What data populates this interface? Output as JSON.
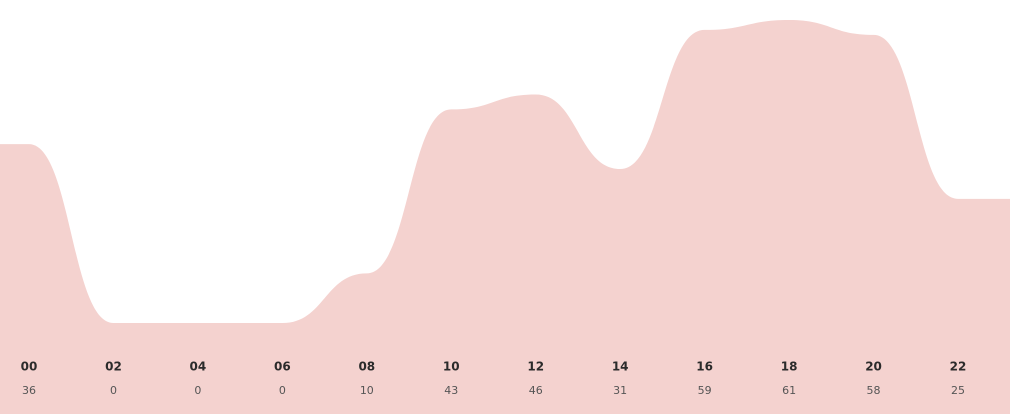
{
  "chart_data": {
    "type": "area",
    "color": "#f4d2cf",
    "categories": [
      "00",
      "02",
      "04",
      "06",
      "08",
      "10",
      "12",
      "14",
      "16",
      "18",
      "20",
      "22"
    ],
    "values": [
      36,
      0,
      0,
      0,
      10,
      43,
      46,
      31,
      59,
      61,
      58,
      25
    ]
  }
}
